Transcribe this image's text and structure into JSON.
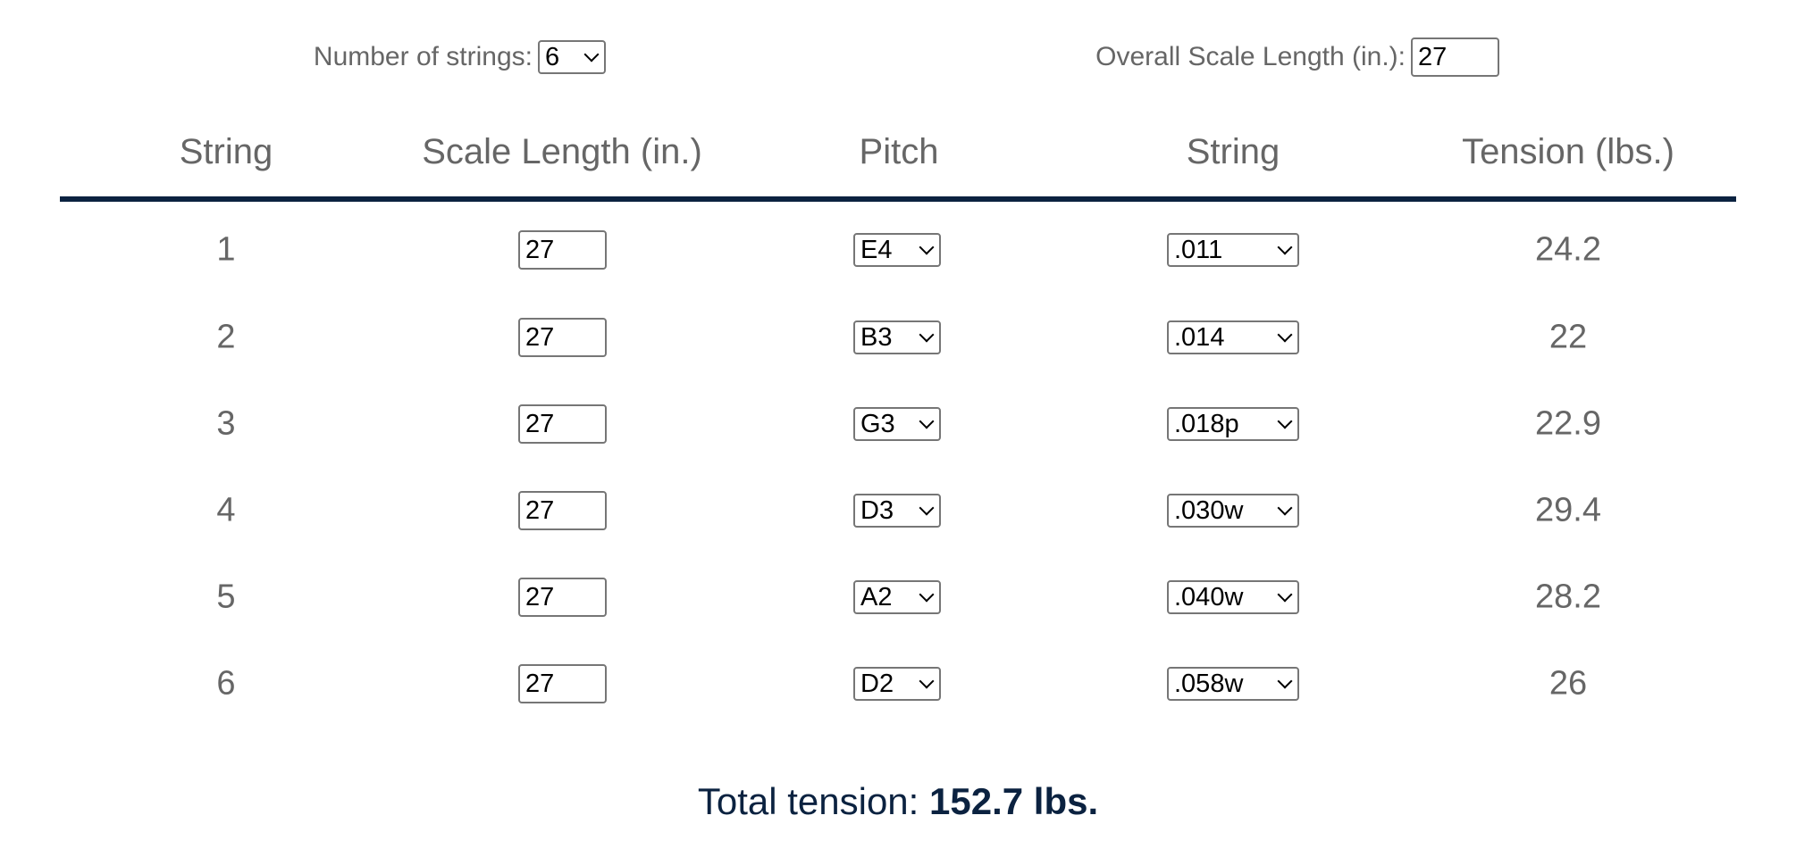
{
  "controls": {
    "num_strings_label": "Number of strings:",
    "num_strings_value": "6",
    "scale_label": "Overall Scale Length (in.):",
    "scale_value": "27"
  },
  "table": {
    "headers": [
      "String",
      "Scale Length (in.)",
      "Pitch",
      "String",
      "Tension (lbs.)"
    ],
    "rows": [
      {
        "string": "1",
        "scale": "27",
        "pitch": "E4",
        "gauge": ".011",
        "tension": "24.2"
      },
      {
        "string": "2",
        "scale": "27",
        "pitch": "B3",
        "gauge": ".014",
        "tension": "22"
      },
      {
        "string": "3",
        "scale": "27",
        "pitch": "G3",
        "gauge": ".018p",
        "tension": "22.9"
      },
      {
        "string": "4",
        "scale": "27",
        "pitch": "D3",
        "gauge": ".030w",
        "tension": "29.4"
      },
      {
        "string": "5",
        "scale": "27",
        "pitch": "A2",
        "gauge": ".040w",
        "tension": "28.2"
      },
      {
        "string": "6",
        "scale": "27",
        "pitch": "D2",
        "gauge": ".058w",
        "tension": "26"
      }
    ]
  },
  "total": {
    "label": "Total tension:",
    "value": "152.7 lbs."
  },
  "colors": {
    "accent": "#0b2240",
    "text": "#666666"
  }
}
